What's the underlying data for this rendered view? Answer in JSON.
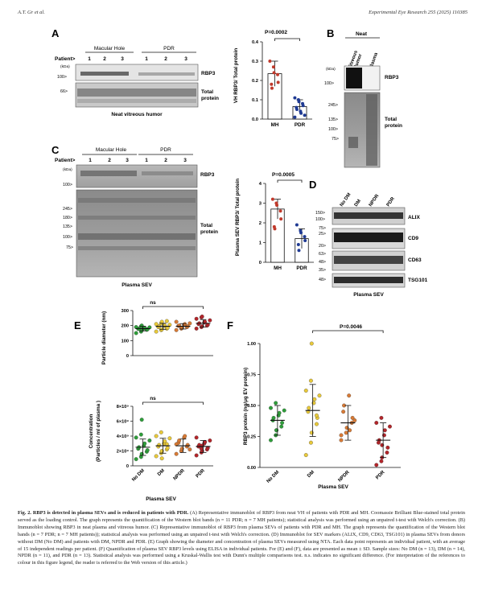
{
  "header": {
    "authors": "A.T. Gr et al.",
    "journal": "Experimental Eye Research 255 (2025) 110385"
  },
  "panels": {
    "A": {
      "letter": "A",
      "group1": "Macular Hole",
      "group2": "PDR",
      "patient_label": "Patient>",
      "patient_numbers": [
        "1",
        "2",
        "3",
        "1",
        "2",
        "3"
      ],
      "kda_label": "(kDa)",
      "marker_100": "100>",
      "marker_66": "66>",
      "band1": "RBP3",
      "band2_l1": "Total",
      "band2_l2": "protein",
      "footer": "Neat vitreous humor"
    },
    "B": {
      "letter": "B",
      "neat": "Neat",
      "col1_l1": "Vitreous",
      "col1_l2": "Humor",
      "col2": "Plasma",
      "kda_label": "(kDa)",
      "marker_100": "100>",
      "markers_total": [
        "245>",
        "135>",
        "100>",
        "75>"
      ],
      "band1": "RBP3",
      "band2_l1": "Total",
      "band2_l2": "protein"
    },
    "C": {
      "letter": "C",
      "group1": "Macular Hole",
      "group2": "PDR",
      "patient_label": "Patient>",
      "patient_numbers": [
        "1",
        "2",
        "3",
        "1",
        "2",
        "3"
      ],
      "kda_label": "(kDa)",
      "marker_100": "100>",
      "markers_total": [
        "245>",
        "180>",
        "135>",
        "100>",
        "75>"
      ],
      "band1": "RBP3",
      "band2_l1": "Total",
      "band2_l2": "protein",
      "footer": "Plasma SEV"
    },
    "D": {
      "letter": "D",
      "lanes": [
        "No DM",
        "DM",
        "NPDR",
        "PDR"
      ],
      "markers_alix": [
        "150>",
        "100>"
      ],
      "markers_cd9": [
        "25>",
        "20>"
      ],
      "markers_cd63": [
        "63>",
        "48>",
        "35>"
      ],
      "markers_tsg": [
        "48>"
      ],
      "marker_75": "75>",
      "bands": [
        "ALIX",
        "CD9",
        "CD63",
        "TSG101"
      ],
      "footer": "Plasma SEV"
    },
    "E": {
      "letter": "E"
    },
    "F": {
      "letter": "F"
    }
  },
  "chart_data": [
    {
      "id": "A-graph",
      "type": "bar",
      "categories": [
        "MH",
        "PDR"
      ],
      "values": [
        0.235,
        0.065
      ],
      "errors": [
        0.065,
        0.035
      ],
      "points": [
        [
          0.3,
          0.27,
          0.24,
          0.23,
          0.19,
          0.18,
          0.16
        ],
        [
          0.11,
          0.1,
          0.09,
          0.08,
          0.07,
          0.06,
          0.05,
          0.04,
          0.03,
          0.02,
          0.01
        ]
      ],
      "point_colors": [
        "#c0392b",
        "#1f3a93"
      ],
      "ylabel": "VH RBP3/ Total protein",
      "ylim": [
        0,
        0.4
      ],
      "yticks": [
        "0.0",
        "0.1",
        "0.2",
        "0.3",
        "0.4"
      ],
      "pvalue": "P=0.0002"
    },
    {
      "id": "C-graph",
      "type": "bar",
      "categories": [
        "MH",
        "PDR"
      ],
      "values": [
        2.7,
        1.2
      ],
      "errors": [
        0.5,
        0.5
      ],
      "points": [
        [
          3.2,
          3.0,
          2.9,
          2.6,
          2.2,
          1.8,
          1.7
        ],
        [
          1.9,
          1.6,
          1.5,
          1.3,
          1.1,
          0.9,
          0.6
        ]
      ],
      "point_colors": [
        "#c0392b",
        "#1f3a93"
      ],
      "ylabel": "Plasma SEV RBP3/ Total protein",
      "ylim": [
        0,
        4
      ],
      "yticks": [
        "0",
        "1",
        "2",
        "3",
        "4"
      ],
      "pvalue": "P=0.0005"
    },
    {
      "id": "E-diameter",
      "type": "scatter",
      "categories": [
        "No DM",
        "DM",
        "NPDR",
        "PDR"
      ],
      "colors": [
        "#2e9e3a",
        "#e8c93a",
        "#d87a35",
        "#b3252a"
      ],
      "means": [
        180,
        195,
        195,
        215
      ],
      "sds": [
        15,
        20,
        18,
        25
      ],
      "points": [
        [
          150,
          160,
          168,
          172,
          175,
          178,
          180,
          182,
          185,
          188,
          190,
          195,
          200
        ],
        [
          160,
          170,
          175,
          180,
          185,
          190,
          195,
          198,
          200,
          205,
          210,
          215,
          225,
          230
        ],
        [
          170,
          180,
          185,
          190,
          195,
          198,
          200,
          205,
          210,
          215,
          225
        ],
        [
          180,
          190,
          195,
          200,
          205,
          210,
          215,
          220,
          225,
          235,
          245,
          255,
          260
        ]
      ],
      "ylabel": "Particle diameter (nm)",
      "ylim": [
        0,
        300
      ],
      "yticks": [
        "0",
        "100",
        "200",
        "300"
      ],
      "label": "ns"
    },
    {
      "id": "E-concentration",
      "type": "scatter",
      "categories": [
        "No DM",
        "DM",
        "NPDR",
        "PDR"
      ],
      "colors": [
        "#2e9e3a",
        "#e8c93a",
        "#d87a35",
        "#b3252a"
      ],
      "means": [
        2.5,
        2.7,
        2.7,
        2.6
      ],
      "sds": [
        1.1,
        1.0,
        0.9,
        0.8
      ],
      "points": [
        [
          0.9,
          1.2,
          1.6,
          1.9,
          2.1,
          2.3,
          2.5,
          2.7,
          3.0,
          3.4,
          3.8,
          4.2,
          6.2
        ],
        [
          1.3,
          1.7,
          2.0,
          2.2,
          2.4,
          2.6,
          2.8,
          3.0,
          3.3,
          3.7,
          4.0,
          4.5,
          1.0,
          2.9
        ],
        [
          1.6,
          2.0,
          2.3,
          2.6,
          2.8,
          3.1,
          3.4,
          3.8,
          4.0,
          2.2,
          2.9
        ],
        [
          1.4,
          1.8,
          2.0,
          2.2,
          2.4,
          2.6,
          2.8,
          3.0,
          3.2,
          3.4,
          3.8,
          2.3,
          2.7
        ]
      ],
      "ylabel_l1": "Concentration",
      "ylabel_l2": "(Particles / ml of plasma )",
      "ylim": [
        0,
        8
      ],
      "yticks": [
        "0",
        "2×10⁹",
        "4×10⁹",
        "6×10⁹",
        "8×10⁹"
      ],
      "xlabels": [
        "No DM",
        "DM",
        "NPDR",
        "PDR"
      ],
      "label": "ns",
      "footer": "Plasma SEV"
    },
    {
      "id": "F-graph",
      "type": "scatter",
      "categories": [
        "No DM",
        "DM",
        "NPDR",
        "PDR"
      ],
      "colors": [
        "#2e9e3a",
        "#e8c93a",
        "#d87a35",
        "#b3252a"
      ],
      "means": [
        0.38,
        0.46,
        0.36,
        0.22
      ],
      "sds": [
        0.12,
        0.21,
        0.14,
        0.14
      ],
      "points": [
        [
          0.22,
          0.26,
          0.3,
          0.33,
          0.36,
          0.38,
          0.4,
          0.42,
          0.44,
          0.46,
          0.48,
          0.52,
          0.3
        ],
        [
          0.1,
          0.2,
          0.28,
          0.35,
          0.4,
          0.45,
          0.48,
          0.52,
          0.55,
          0.58,
          0.62,
          0.7,
          1.0,
          0.42
        ],
        [
          0.22,
          0.28,
          0.32,
          0.36,
          0.4,
          0.45,
          0.5,
          0.58,
          0.3,
          0.38,
          0.26
        ],
        [
          0.02,
          0.05,
          0.08,
          0.12,
          0.16,
          0.2,
          0.22,
          0.26,
          0.3,
          0.33,
          0.36,
          0.4,
          0.18
        ]
      ],
      "ylabel": "RBP3 protein (ng/μg EV protein)",
      "ylim": [
        0,
        1.0
      ],
      "yticks": [
        "0.00",
        "0.25",
        "0.50",
        "0.75",
        "1.00"
      ],
      "xlabels": [
        "No DM",
        "DM",
        "NPDR",
        "PDR"
      ],
      "pvalue": "P=0.0046",
      "footer": "Plasma SEV"
    }
  ],
  "caption": {
    "title": "Fig. 2.  RBP3 is detected in plasma SEVs and is reduced in patients with PDR.",
    "body": " (A) Representative immunoblot of RBP3 from neat VH of patients with PDR and MH. Coomassie Brilliant Blue-stained total protein served as the loading control. The graph represents the quantification of the Western blot bands (n = 11 PDR; n = 7 MH patients); statistical analysis was performed using an unpaired t-test with Welch's correction. (B) Immunoblot showing RBP3 in neat plasma and vitreous humor. (C) Representative immunoblot of RBP3 from plasma SEVs of patients with PDR and MH. The graph represents the quantification of the Western blot bands (n = 7 PDR; n = 7 MH patients)); statistical analysis was performed using an unpaired t-test with Welch's correction. (D) Immunoblot for SEV markers (ALIX, CD9, CD63, TSG101) in plasma SEVs from donors without DM (No DM) and patients with DM, NPDR and PDR. (E) Graph showing the diameter and concentration of plasma SEVs measured using NTA. Each data point represents an individual patient, with an average of 15 independent readings per patient. (F) Quantification of plasma SEV RBP3 levels using ELISA in individual patients. For (E) and (F), data are presented as mean ± SD. Sample sizes: No DM (n = 13), DM (n = 14), NPDR (n = 11), and PDR (n = 13). Statistical analysis was performed using a Kruskal-Wallis test with Dunn's multiple comparisons test. n.s. indicates no significant difference. (For interpretation of the references to colour in this figure legend, the reader is referred to the Web version of this article.)"
  }
}
